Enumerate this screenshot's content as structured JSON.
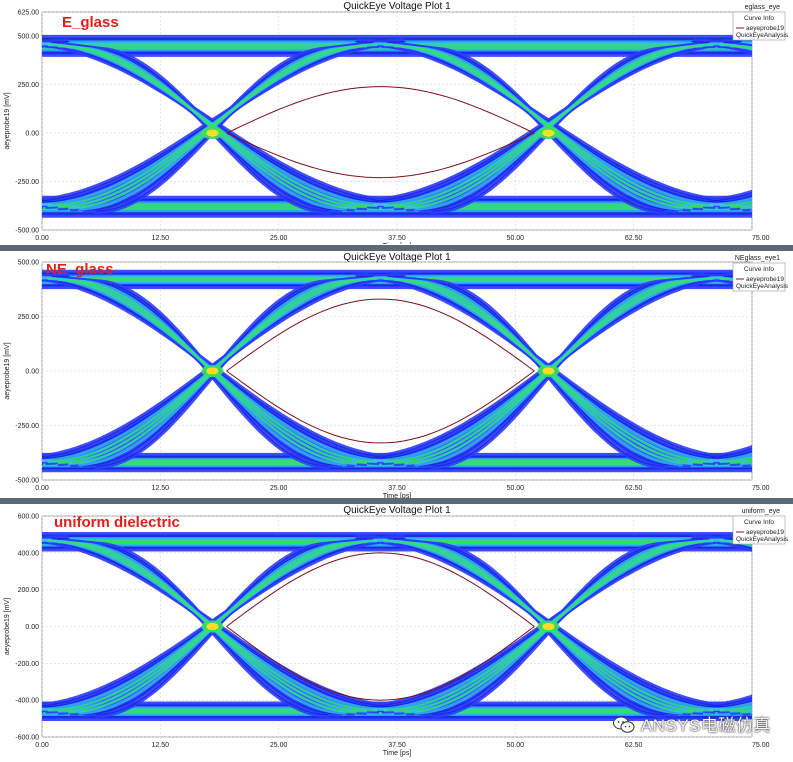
{
  "colors": {
    "line_blue": "#1a24d8",
    "fill_blue": "#2a3cff",
    "cyan": "#30c8f0",
    "green": "#38e060",
    "yellow": "#ffe020",
    "red_label": "#e0201a",
    "trace": "#7a1020"
  },
  "watermark": {
    "icon": "wechat-icon",
    "text": "ANSYS电磁仿真"
  },
  "chart_data": [
    {
      "type": "line",
      "label": "E_glass",
      "title": "QuickEye Voltage Plot 1",
      "corner_label": "eglass_eye",
      "legend": {
        "heading": "Curve Info",
        "series": "aeyeprobe19",
        "sub": "QuickEyeAnalysis"
      },
      "xlabel": "Time [ps]",
      "ylabel": "aeyeprobe19 [mV]",
      "xlim": [
        0,
        75
      ],
      "ylim": [
        -500,
        625
      ],
      "x_ticks": [
        "0.00",
        "12.50",
        "25.00",
        "37.50",
        "50.00",
        "62.50",
        "75.00"
      ],
      "y_ticks": [
        {
          "v": 625,
          "t": "625.00"
        },
        {
          "v": 500,
          "t": "500.00"
        },
        {
          "v": 250,
          "t": "250.00"
        },
        {
          "v": 0,
          "t": "0.00"
        },
        {
          "v": -250,
          "t": "-250.00"
        },
        {
          "v": -500,
          "t": "-500.00"
        }
      ],
      "grid": true,
      "eye": {
        "high": 450,
        "low": -380,
        "rail_spread": 70,
        "inner_high": 240,
        "inner_low": -230,
        "crossings": [
          18,
          53.5
        ],
        "period": 35.5
      }
    },
    {
      "type": "line",
      "label": "NE_glass",
      "title": "QuickEye Voltage Plot 1",
      "corner_label": "NEglass_eye1",
      "legend": {
        "heading": "Curve Info",
        "series": "aeyeprobe19",
        "sub": "QuickEyeAnalysis"
      },
      "xlabel": "Time [ps]",
      "ylabel": "aeyeprobe19 [mV]",
      "xlim": [
        0,
        75
      ],
      "ylim": [
        -500,
        500
      ],
      "x_ticks": [
        "0.00",
        "12.50",
        "25.00",
        "37.50",
        "50.00",
        "62.50",
        "75.00"
      ],
      "y_ticks": [
        {
          "v": 500,
          "t": "500.00"
        },
        {
          "v": 250,
          "t": "250.00"
        },
        {
          "v": 0,
          "t": "0.00"
        },
        {
          "v": -250,
          "t": "-250.00"
        },
        {
          "v": -500,
          "t": "-500.00"
        }
      ],
      "grid": true,
      "eye": {
        "high": 420,
        "low": -420,
        "rail_spread": 50,
        "inner_high": 330,
        "inner_low": -330,
        "crossings": [
          18,
          53.5
        ],
        "period": 35.5
      }
    },
    {
      "type": "line",
      "label": "uniform dielectric",
      "title": "QuickEye Voltage Plot 1",
      "corner_label": "uniform_eye",
      "legend": {
        "heading": "Curve Info",
        "series": "aeyeprobe19",
        "sub": "QuickEyeAnalysis"
      },
      "xlabel": "Time [ps]",
      "ylabel": "aeyeprobe19 [mV]",
      "xlim": [
        0,
        75
      ],
      "ylim": [
        -600,
        600
      ],
      "x_ticks": [
        "0.00",
        "12.50",
        "25.00",
        "37.50",
        "50.00",
        "62.50",
        "75.00"
      ],
      "y_ticks": [
        {
          "v": 600,
          "t": "600.00"
        },
        {
          "v": 400,
          "t": "400.00"
        },
        {
          "v": 200,
          "t": "200.00"
        },
        {
          "v": 0,
          "t": "0.00"
        },
        {
          "v": -200,
          "t": "-200.00"
        },
        {
          "v": -400,
          "t": "-400.00"
        },
        {
          "v": -600,
          "t": "-600.00"
        }
      ],
      "grid": true,
      "eye": {
        "high": 460,
        "low": -460,
        "rail_spread": 60,
        "inner_high": 400,
        "inner_low": -400,
        "crossings": [
          18,
          53.5
        ],
        "period": 35.5
      }
    }
  ]
}
